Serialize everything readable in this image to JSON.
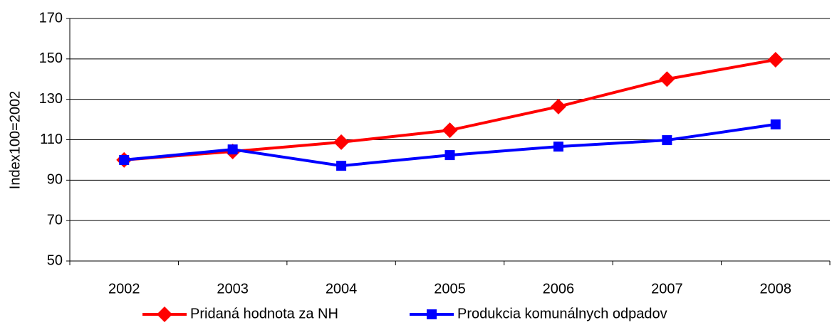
{
  "chart_data": {
    "type": "line",
    "y_label": "Index100=2002",
    "categories": [
      "2002",
      "2003",
      "2004",
      "2005",
      "2006",
      "2007",
      "2008"
    ],
    "series": [
      {
        "name": "Pridaná hodnota za NH",
        "color": "#ff0000",
        "marker": "diamond",
        "values": [
          100,
          104.2,
          108.8,
          114.7,
          126.4,
          140,
          149.6
        ]
      },
      {
        "name": "Produkcia komunálnych odpadov",
        "color": "#0000ff",
        "marker": "square",
        "values": [
          100,
          105.2,
          97.1,
          102.4,
          106.6,
          109.8,
          117.6
        ]
      }
    ],
    "ylim": [
      50,
      170
    ],
    "yticks": [
      50,
      70,
      90,
      110,
      130,
      150,
      170
    ],
    "grid": true,
    "legend": "bottom"
  }
}
